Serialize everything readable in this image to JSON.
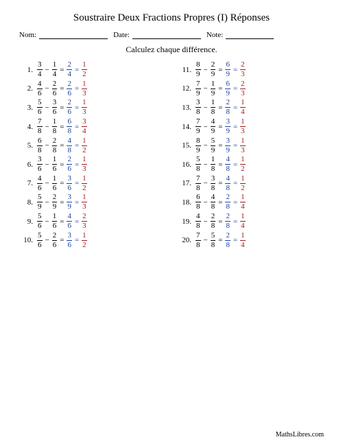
{
  "title": "Soustraire Deux Fractions Propres (I) Réponses",
  "header": {
    "name_label": "Nom:",
    "date_label": "Date:",
    "note_label": "Note:"
  },
  "instruction": "Calculez chaque différence.",
  "footer": "MathsLibres.com",
  "colors": {
    "intermediate": "#1a3f9c",
    "final": "#a01818",
    "text": "#000000",
    "background": "#ffffff"
  },
  "problems": [
    {
      "num": 1,
      "a": {
        "n": 3,
        "d": 4
      },
      "b": {
        "n": 1,
        "d": 4
      },
      "diff": {
        "n": 2,
        "d": 4
      },
      "reduced": {
        "n": 1,
        "d": 2
      }
    },
    {
      "num": 2,
      "a": {
        "n": 4,
        "d": 6
      },
      "b": {
        "n": 2,
        "d": 6
      },
      "diff": {
        "n": 2,
        "d": 6
      },
      "reduced": {
        "n": 1,
        "d": 3
      }
    },
    {
      "num": 3,
      "a": {
        "n": 5,
        "d": 6
      },
      "b": {
        "n": 3,
        "d": 6
      },
      "diff": {
        "n": 2,
        "d": 6
      },
      "reduced": {
        "n": 1,
        "d": 3
      }
    },
    {
      "num": 4,
      "a": {
        "n": 7,
        "d": 8
      },
      "b": {
        "n": 1,
        "d": 8
      },
      "diff": {
        "n": 6,
        "d": 8
      },
      "reduced": {
        "n": 3,
        "d": 4
      }
    },
    {
      "num": 5,
      "a": {
        "n": 6,
        "d": 8
      },
      "b": {
        "n": 2,
        "d": 8
      },
      "diff": {
        "n": 4,
        "d": 8
      },
      "reduced": {
        "n": 1,
        "d": 2
      }
    },
    {
      "num": 6,
      "a": {
        "n": 3,
        "d": 6
      },
      "b": {
        "n": 1,
        "d": 6
      },
      "diff": {
        "n": 2,
        "d": 6
      },
      "reduced": {
        "n": 1,
        "d": 3
      }
    },
    {
      "num": 7,
      "a": {
        "n": 4,
        "d": 6
      },
      "b": {
        "n": 1,
        "d": 6
      },
      "diff": {
        "n": 3,
        "d": 6
      },
      "reduced": {
        "n": 1,
        "d": 2
      }
    },
    {
      "num": 8,
      "a": {
        "n": 5,
        "d": 9
      },
      "b": {
        "n": 2,
        "d": 9
      },
      "diff": {
        "n": 3,
        "d": 9
      },
      "reduced": {
        "n": 1,
        "d": 3
      }
    },
    {
      "num": 9,
      "a": {
        "n": 5,
        "d": 6
      },
      "b": {
        "n": 1,
        "d": 6
      },
      "diff": {
        "n": 4,
        "d": 6
      },
      "reduced": {
        "n": 2,
        "d": 3
      }
    },
    {
      "num": 10,
      "a": {
        "n": 5,
        "d": 6
      },
      "b": {
        "n": 2,
        "d": 6
      },
      "diff": {
        "n": 3,
        "d": 6
      },
      "reduced": {
        "n": 1,
        "d": 2
      }
    },
    {
      "num": 11,
      "a": {
        "n": 8,
        "d": 9
      },
      "b": {
        "n": 2,
        "d": 9
      },
      "diff": {
        "n": 6,
        "d": 9
      },
      "reduced": {
        "n": 2,
        "d": 3
      }
    },
    {
      "num": 12,
      "a": {
        "n": 7,
        "d": 9
      },
      "b": {
        "n": 1,
        "d": 9
      },
      "diff": {
        "n": 6,
        "d": 9
      },
      "reduced": {
        "n": 2,
        "d": 3
      }
    },
    {
      "num": 13,
      "a": {
        "n": 3,
        "d": 8
      },
      "b": {
        "n": 1,
        "d": 8
      },
      "diff": {
        "n": 2,
        "d": 8
      },
      "reduced": {
        "n": 1,
        "d": 4
      }
    },
    {
      "num": 14,
      "a": {
        "n": 7,
        "d": 9
      },
      "b": {
        "n": 4,
        "d": 9
      },
      "diff": {
        "n": 3,
        "d": 9
      },
      "reduced": {
        "n": 1,
        "d": 3
      }
    },
    {
      "num": 15,
      "a": {
        "n": 8,
        "d": 9
      },
      "b": {
        "n": 5,
        "d": 9
      },
      "diff": {
        "n": 3,
        "d": 9
      },
      "reduced": {
        "n": 1,
        "d": 3
      }
    },
    {
      "num": 16,
      "a": {
        "n": 5,
        "d": 8
      },
      "b": {
        "n": 1,
        "d": 8
      },
      "diff": {
        "n": 4,
        "d": 8
      },
      "reduced": {
        "n": 1,
        "d": 2
      }
    },
    {
      "num": 17,
      "a": {
        "n": 7,
        "d": 8
      },
      "b": {
        "n": 3,
        "d": 8
      },
      "diff": {
        "n": 4,
        "d": 8
      },
      "reduced": {
        "n": 1,
        "d": 2
      }
    },
    {
      "num": 18,
      "a": {
        "n": 6,
        "d": 8
      },
      "b": {
        "n": 4,
        "d": 8
      },
      "diff": {
        "n": 2,
        "d": 8
      },
      "reduced": {
        "n": 1,
        "d": 4
      }
    },
    {
      "num": 19,
      "a": {
        "n": 4,
        "d": 8
      },
      "b": {
        "n": 2,
        "d": 8
      },
      "diff": {
        "n": 2,
        "d": 8
      },
      "reduced": {
        "n": 1,
        "d": 4
      }
    },
    {
      "num": 20,
      "a": {
        "n": 7,
        "d": 8
      },
      "b": {
        "n": 5,
        "d": 8
      },
      "diff": {
        "n": 2,
        "d": 8
      },
      "reduced": {
        "n": 1,
        "d": 4
      }
    }
  ]
}
